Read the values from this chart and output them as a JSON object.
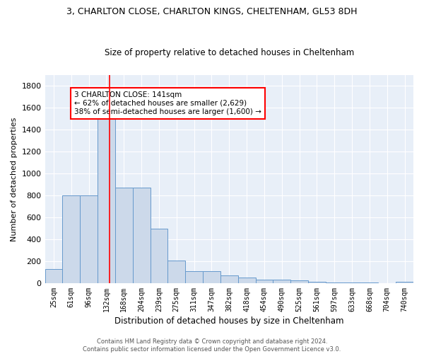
{
  "title_line1": "3, CHARLTON CLOSE, CHARLTON KINGS, CHELTENHAM, GL53 8DH",
  "title_line2": "Size of property relative to detached houses in Cheltenham",
  "xlabel": "Distribution of detached houses by size in Cheltenham",
  "ylabel": "Number of detached properties",
  "bar_labels": [
    "25sqm",
    "61sqm",
    "96sqm",
    "132sqm",
    "168sqm",
    "204sqm",
    "239sqm",
    "275sqm",
    "311sqm",
    "347sqm",
    "382sqm",
    "418sqm",
    "454sqm",
    "490sqm",
    "525sqm",
    "561sqm",
    "597sqm",
    "633sqm",
    "668sqm",
    "704sqm",
    "740sqm"
  ],
  "bar_values": [
    130,
    800,
    800,
    1500,
    870,
    870,
    500,
    205,
    110,
    110,
    70,
    50,
    35,
    30,
    25,
    10,
    8,
    5,
    3,
    2,
    15
  ],
  "bar_color": "#ccd9ea",
  "bar_edge_color": "#6699cc",
  "red_line_x": 3.2,
  "annotation_text": "3 CHARLTON CLOSE: 141sqm\n← 62% of detached houses are smaller (2,629)\n38% of semi-detached houses are larger (1,600) →",
  "annotation_box_color": "white",
  "annotation_box_edge_color": "red",
  "ylim": [
    0,
    1900
  ],
  "yticks": [
    0,
    200,
    400,
    600,
    800,
    1000,
    1200,
    1400,
    1600,
    1800
  ],
  "bg_color": "#e8eff8",
  "grid_color": "white",
  "title1_fontsize": 9,
  "title2_fontsize": 9,
  "footer_text": "Contains HM Land Registry data © Crown copyright and database right 2024.\nContains public sector information licensed under the Open Government Licence v3.0."
}
